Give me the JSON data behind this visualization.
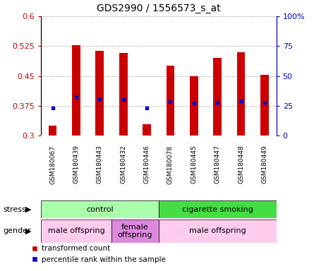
{
  "title": "GDS2990 / 1556573_s_at",
  "samples": [
    "GSM180067",
    "GSM180439",
    "GSM180443",
    "GSM180432",
    "GSM180446",
    "GSM180078",
    "GSM180445",
    "GSM180447",
    "GSM180448",
    "GSM180449"
  ],
  "red_values": [
    0.325,
    0.528,
    0.513,
    0.508,
    0.328,
    0.475,
    0.449,
    0.495,
    0.51,
    0.452
  ],
  "blue_values": [
    0.37,
    0.395,
    0.392,
    0.39,
    0.37,
    0.385,
    0.382,
    0.384,
    0.387,
    0.384
  ],
  "ylim_left": [
    0.3,
    0.6
  ],
  "ylim_right": [
    0,
    100
  ],
  "yticks_left": [
    0.3,
    0.375,
    0.45,
    0.525,
    0.6
  ],
  "yticks_right": [
    0,
    25,
    50,
    75,
    100
  ],
  "stress_groups": [
    {
      "label": "control",
      "start": 0,
      "end": 5,
      "color": "#aaffaa"
    },
    {
      "label": "cigarette smoking",
      "start": 5,
      "end": 10,
      "color": "#44dd44"
    }
  ],
  "gender_groups": [
    {
      "label": "male offspring",
      "start": 0,
      "end": 3,
      "color": "#ffccee"
    },
    {
      "label": "female\noffspring",
      "start": 3,
      "end": 5,
      "color": "#dd88dd"
    },
    {
      "label": "male offspring",
      "start": 5,
      "end": 10,
      "color": "#ffccee"
    }
  ],
  "bar_color": "#CC0000",
  "dot_color": "#0000CC",
  "bar_width": 0.35,
  "grid_color": "#888888",
  "label_color_left": "#CC0000",
  "label_color_right": "#0000CC",
  "tick_bg_color": "#dddddd"
}
